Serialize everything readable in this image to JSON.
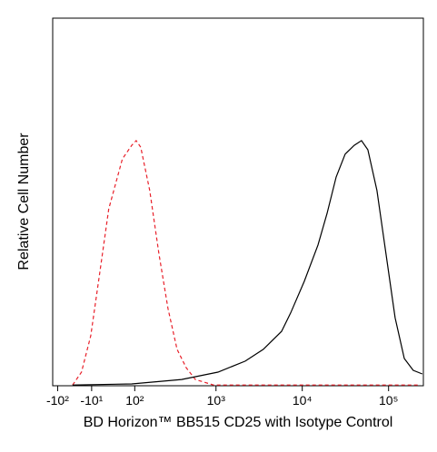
{
  "chart_data": {
    "type": "histogram_overlay",
    "x_label": "BD Horizon™ BB515 CD25 with Isotype Control",
    "y_label": "Relative Cell Number",
    "x_scale": "biexponential",
    "xlim": [
      -118,
      253000
    ],
    "xticks": [
      {
        "value": -100,
        "label": "-10²"
      },
      {
        "value": -10,
        "label": "-10¹"
      },
      {
        "value": 100,
        "label": "10²"
      },
      {
        "value": 1000,
        "label": "10³"
      },
      {
        "value": 10000,
        "label": "10⁴"
      },
      {
        "value": 100000,
        "label": "10⁵"
      }
    ],
    "ylim": [
      0,
      100
    ],
    "series": [
      {
        "color": "#e8202a",
        "dash": true,
        "x": [
          -55,
          -33,
          -12,
          8,
          28,
          62,
          90,
          105,
          122,
          161,
          211,
          272,
          350,
          449,
          574,
          935,
          4520,
          218000
        ],
        "values": [
          0.2,
          3.7,
          13.6,
          30.9,
          48.1,
          61.7,
          65.4,
          66.7,
          64.9,
          53.1,
          35.8,
          21.0,
          9.9,
          4.9,
          1.7,
          0.2,
          0.2,
          0.2
        ]
      },
      {
        "color": "#000000",
        "dash": false,
        "x": [
          -55,
          90,
          396,
          1054,
          2180,
          3540,
          5760,
          7340,
          10560,
          15200,
          19400,
          24700,
          31400,
          40000,
          48600,
          57600,
          73400,
          93500,
          119000,
          152000,
          193000,
          246000
        ],
        "values": [
          0.2,
          0.5,
          1.7,
          3.7,
          6.7,
          9.9,
          14.8,
          19.8,
          28.4,
          38.3,
          46.9,
          56.8,
          63.0,
          65.4,
          66.7,
          64.2,
          53.1,
          35.8,
          18.5,
          7.4,
          4.2,
          3.2
        ]
      }
    ]
  }
}
